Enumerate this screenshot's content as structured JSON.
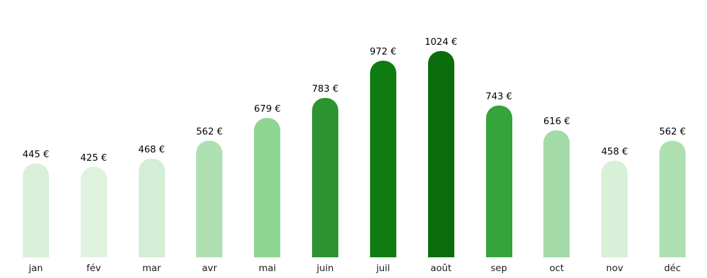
{
  "chart_data": {
    "type": "bar",
    "title": "",
    "xlabel": "",
    "ylabel": "",
    "unit_suffix": " €",
    "grid": false,
    "legend": false,
    "background": "#ffffff",
    "text_color": "#000000",
    "categories": [
      "jan",
      "fév",
      "mar",
      "avr",
      "mai",
      "juin",
      "juil",
      "août",
      "sep",
      "oct",
      "nov",
      "déc"
    ],
    "values": [
      445,
      425,
      468,
      562,
      679,
      783,
      972,
      1024,
      743,
      616,
      458,
      562
    ],
    "value_labels": [
      "445 €",
      "425 €",
      "468 €",
      "562 €",
      "679 €",
      "783 €",
      "972 €",
      "1024 €",
      "743 €",
      "616 €",
      "458 €",
      "562 €"
    ],
    "bar_colors": [
      "#daf0da",
      "#def2de",
      "#d4edd5",
      "#aee0b1",
      "#8fd592",
      "#2c9331",
      "#0f7c11",
      "#0a6e0d",
      "#36a43a",
      "#a4daa7",
      "#d8efd8",
      "#aee0b1"
    ],
    "value_range": [
      425,
      1024
    ]
  }
}
